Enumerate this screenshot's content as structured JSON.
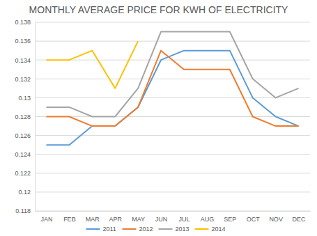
{
  "chart_data": {
    "type": "line",
    "title": "MONTHLY AVERAGE PRICE FOR KWH OF ELECTRICITY",
    "categories": [
      "JAN",
      "FEB",
      "MAR",
      "APR",
      "MAY",
      "JUN",
      "JUL",
      "AUG",
      "SEP",
      "OCT",
      "NOV",
      "DEC"
    ],
    "series": [
      {
        "name": "2011",
        "color": "#5b9bd5",
        "values": [
          0.125,
          0.125,
          0.127,
          0.127,
          0.129,
          0.134,
          0.135,
          0.135,
          0.135,
          0.13,
          0.128,
          0.127
        ]
      },
      {
        "name": "2012",
        "color": "#ed7d31",
        "values": [
          0.128,
          0.128,
          0.127,
          0.127,
          0.129,
          0.135,
          0.133,
          0.133,
          0.133,
          0.128,
          0.127,
          0.127
        ]
      },
      {
        "name": "2013",
        "color": "#a5a5a5",
        "values": [
          0.129,
          0.129,
          0.128,
          0.128,
          0.131,
          0.137,
          0.137,
          0.137,
          0.137,
          0.132,
          0.13,
          0.131
        ]
      },
      {
        "name": "2014",
        "color": "#ffc000",
        "values": [
          0.134,
          0.134,
          0.135,
          0.131,
          0.136,
          null,
          null,
          null,
          null,
          null,
          null,
          null
        ]
      }
    ],
    "ylim": [
      0.118,
      0.138
    ],
    "yticks": [
      0.118,
      0.12,
      0.122,
      0.124,
      0.126,
      0.128,
      0.13,
      0.132,
      0.134,
      0.136,
      0.138
    ],
    "grid": true,
    "legend": "bottom"
  }
}
